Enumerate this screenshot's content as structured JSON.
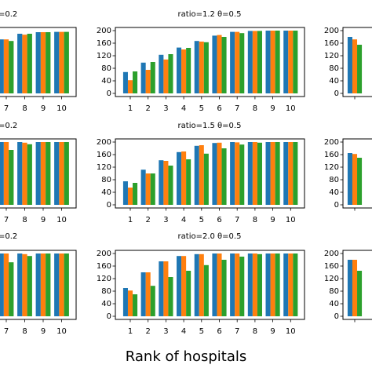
{
  "xlabel": "Rank of hospitals",
  "chart_data": [
    {
      "type": "bar",
      "title": "=0.2",
      "categories": [
        "7",
        "8",
        "9",
        "10"
      ],
      "ylim": [
        -10,
        210
      ],
      "series": [
        {
          "color": "#1f77b4",
          "values": [
            172,
            190,
            195,
            196
          ]
        },
        {
          "color": "#ff7f0e",
          "values": [
            172,
            187,
            195,
            196
          ]
        },
        {
          "color": "#2ca02c",
          "values": [
            167,
            190,
            195,
            196
          ]
        }
      ]
    },
    {
      "type": "bar",
      "title": "ratio=1.2 θ=0.5",
      "categories": [
        "1",
        "2",
        "3",
        "4",
        "5",
        "6",
        "7",
        "8",
        "9",
        "10"
      ],
      "ylim": [
        -10,
        210
      ],
      "yticks": [
        0,
        40,
        80,
        120,
        160,
        200
      ],
      "series": [
        {
          "color": "#1f77b4",
          "values": [
            68,
            98,
            123,
            146,
            167,
            184,
            196,
            199,
            200,
            200
          ]
        },
        {
          "color": "#ff7f0e",
          "values": [
            42,
            75,
            108,
            140,
            165,
            186,
            196,
            199,
            200,
            200
          ]
        },
        {
          "color": "#2ca02c",
          "values": [
            70,
            100,
            125,
            145,
            163,
            180,
            192,
            199,
            200,
            200
          ]
        }
      ]
    },
    {
      "type": "bar",
      "categories": [
        null
      ],
      "ylim": [
        -10,
        210
      ],
      "yticks": [
        0,
        40,
        80,
        120,
        160,
        200
      ],
      "series": [
        {
          "color": "#1f77b4",
          "values": [
            180
          ]
        },
        {
          "color": "#ff7f0e",
          "values": [
            172
          ]
        },
        {
          "color": "#2ca02c",
          "values": [
            155
          ]
        }
      ]
    },
    {
      "type": "bar",
      "title": "=0.2",
      "categories": [
        "7",
        "8",
        "9",
        "10"
      ],
      "ylim": [
        -10,
        210
      ],
      "series": [
        {
          "color": "#1f77b4",
          "values": [
            200,
            200,
            200,
            200
          ]
        },
        {
          "color": "#ff7f0e",
          "values": [
            200,
            198,
            200,
            200
          ]
        },
        {
          "color": "#2ca02c",
          "values": [
            175,
            193,
            200,
            200
          ]
        }
      ]
    },
    {
      "type": "bar",
      "title": "ratio=1.5 θ=0.5",
      "categories": [
        "1",
        "2",
        "3",
        "4",
        "5",
        "6",
        "7",
        "8",
        "9",
        "10"
      ],
      "ylim": [
        -10,
        210
      ],
      "yticks": [
        0,
        40,
        80,
        120,
        160,
        200
      ],
      "series": [
        {
          "color": "#1f77b4",
          "values": [
            75,
            112,
            142,
            168,
            188,
            197,
            200,
            200,
            200,
            200
          ]
        },
        {
          "color": "#ff7f0e",
          "values": [
            55,
            100,
            140,
            170,
            190,
            198,
            199,
            200,
            200,
            200
          ]
        },
        {
          "color": "#2ca02c",
          "values": [
            70,
            100,
            125,
            145,
            163,
            180,
            192,
            198,
            200,
            200
          ]
        }
      ]
    },
    {
      "type": "bar",
      "categories": [
        null
      ],
      "ylim": [
        -10,
        210
      ],
      "yticks": [
        0,
        40,
        80,
        120,
        160,
        200
      ],
      "series": [
        {
          "color": "#1f77b4",
          "values": [
            165
          ]
        },
        {
          "color": "#ff7f0e",
          "values": [
            162
          ]
        },
        {
          "color": "#2ca02c",
          "values": [
            150
          ]
        }
      ]
    },
    {
      "type": "bar",
      "title": "=0.2",
      "categories": [
        "7",
        "8",
        "9",
        "10"
      ],
      "ylim": [
        -10,
        210
      ],
      "series": [
        {
          "color": "#1f77b4",
          "values": [
            200,
            200,
            200,
            200
          ]
        },
        {
          "color": "#ff7f0e",
          "values": [
            200,
            198,
            200,
            200
          ]
        },
        {
          "color": "#2ca02c",
          "values": [
            172,
            192,
            200,
            200
          ]
        }
      ]
    },
    {
      "type": "bar",
      "title": "ratio=2.0 θ=0.5",
      "categories": [
        "1",
        "2",
        "3",
        "4",
        "5",
        "6",
        "7",
        "8",
        "9",
        "10"
      ],
      "ylim": [
        -10,
        210
      ],
      "yticks": [
        0,
        40,
        80,
        120,
        160,
        200
      ],
      "series": [
        {
          "color": "#1f77b4",
          "values": [
            90,
            140,
            175,
            192,
            198,
            200,
            200,
            200,
            200,
            200
          ]
        },
        {
          "color": "#ff7f0e",
          "values": [
            82,
            140,
            175,
            192,
            198,
            200,
            200,
            200,
            200,
            200
          ]
        },
        {
          "color": "#2ca02c",
          "values": [
            70,
            97,
            125,
            145,
            163,
            180,
            190,
            198,
            200,
            200
          ]
        }
      ]
    },
    {
      "type": "bar",
      "categories": [
        null
      ],
      "ylim": [
        -10,
        210
      ],
      "yticks": [
        0,
        40,
        80,
        120,
        160,
        200
      ],
      "series": [
        {
          "color": "#1f77b4",
          "values": [
            180
          ]
        },
        {
          "color": "#ff7f0e",
          "values": [
            180
          ]
        },
        {
          "color": "#2ca02c",
          "values": [
            145
          ]
        }
      ]
    }
  ]
}
